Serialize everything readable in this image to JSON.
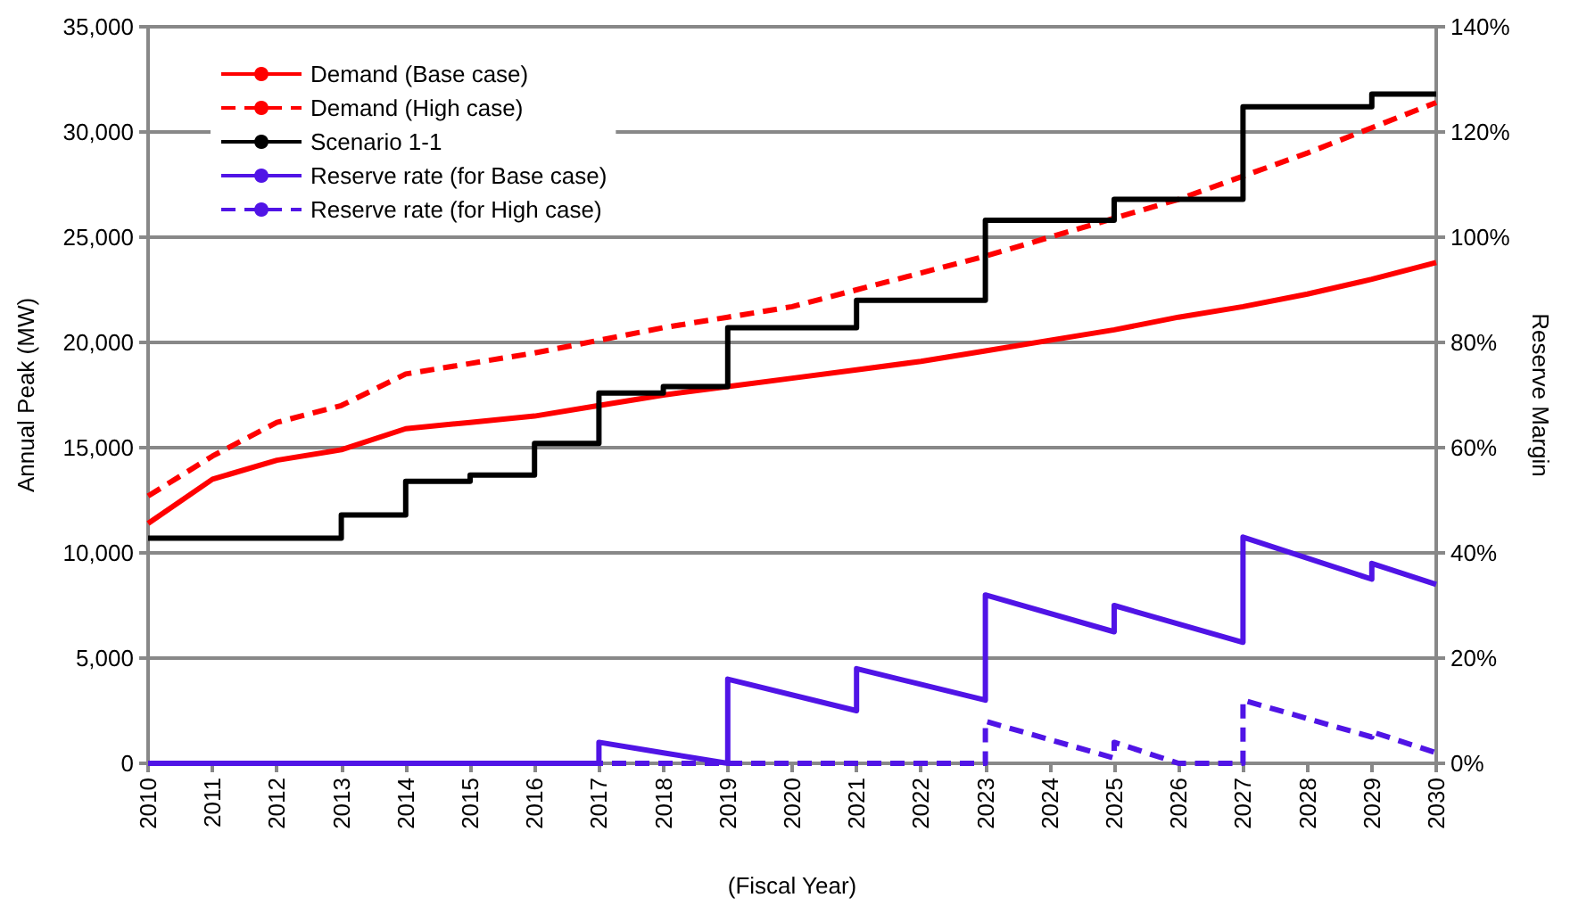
{
  "chart_data": {
    "type": "line",
    "xlabel": "(Fiscal Year)",
    "ylabel": "Annual Peak (MW)",
    "y2label": "Reserve Margin",
    "x": [
      2010,
      2011,
      2012,
      2013,
      2014,
      2015,
      2016,
      2017,
      2018,
      2019,
      2020,
      2021,
      2022,
      2023,
      2024,
      2025,
      2026,
      2027,
      2028,
      2029,
      2030
    ],
    "series": [
      {
        "name": "Demand (Base case)",
        "color": "#ff0000",
        "line_style": "solid",
        "values": [
          11400,
          13500,
          14400,
          14900,
          15900,
          16200,
          16500,
          17000,
          17500,
          17900,
          18300,
          18700,
          19100,
          19600,
          20100,
          20600,
          21200,
          21700,
          22300,
          23000,
          23800
        ]
      },
      {
        "name": "Demand (High case)",
        "color": "#ff0000",
        "line_style": "dashed",
        "values": [
          12700,
          14600,
          16200,
          17000,
          18500,
          19000,
          19500,
          20100,
          20700,
          21200,
          21700,
          22500,
          23300,
          24100,
          25000,
          25900,
          26800,
          27900,
          29000,
          30200,
          31400
        ]
      },
      {
        "name": "Scenario 1-1",
        "type": "step",
        "color": "#000000",
        "line_style": "solid",
        "values": [
          10700,
          10700,
          10700,
          11800,
          13400,
          13700,
          15200,
          17600,
          17900,
          20700,
          20700,
          22000,
          22000,
          25800,
          25800,
          26800,
          26800,
          31200,
          31200,
          31800,
          31800
        ]
      },
      {
        "name": "Reserve rate (for Base case)",
        "color": "#5014e6",
        "line_style": "solid",
        "axis": "y2",
        "x": [
          2010,
          2017,
          2017,
          2018,
          2018,
          2019,
          2019,
          2021,
          2021,
          2023,
          2023,
          2025,
          2025,
          2027,
          2027,
          2029,
          2029,
          2030
        ],
        "values": [
          0,
          0,
          4,
          2,
          2,
          0,
          16,
          10,
          18,
          12,
          32,
          25,
          30,
          23,
          43,
          35,
          38,
          34
        ]
      },
      {
        "name": "Reserve rate (for High case)",
        "color": "#5014e6",
        "line_style": "dashed",
        "axis": "y2",
        "x": [
          2010,
          2023,
          2023,
          2025,
          2025,
          2026,
          2027,
          2027,
          2029,
          2029,
          2030
        ],
        "values": [
          0,
          0,
          8,
          1,
          4,
          0,
          0,
          12,
          5,
          6,
          2
        ]
      }
    ],
    "xlim": [
      2010,
      2030
    ],
    "xticks": [
      2010,
      2011,
      2012,
      2013,
      2014,
      2015,
      2016,
      2017,
      2018,
      2019,
      2020,
      2021,
      2022,
      2023,
      2024,
      2025,
      2026,
      2027,
      2028,
      2029,
      2030
    ],
    "ylim": [
      0,
      35000
    ],
    "yticks": [
      {
        "value": 0,
        "label": "0"
      },
      {
        "value": 5000,
        "label": "5,000"
      },
      {
        "value": 10000,
        "label": "10,000"
      },
      {
        "value": 15000,
        "label": "15,000"
      },
      {
        "value": 20000,
        "label": "20,000"
      },
      {
        "value": 25000,
        "label": "25,000"
      },
      {
        "value": 30000,
        "label": "30,000"
      },
      {
        "value": 35000,
        "label": "35,000"
      }
    ],
    "y2lim": [
      0,
      140
    ],
    "y2ticks": [
      {
        "value": 0,
        "label": "0%"
      },
      {
        "value": 20,
        "label": "20%"
      },
      {
        "value": 40,
        "label": "40%"
      },
      {
        "value": 60,
        "label": "60%"
      },
      {
        "value": 80,
        "label": "80%"
      },
      {
        "value": 100,
        "label": "100%"
      },
      {
        "value": 120,
        "label": "120%"
      },
      {
        "value": 140,
        "label": "140%"
      }
    ],
    "grid": "y",
    "legend": "top left",
    "marker": "none"
  }
}
